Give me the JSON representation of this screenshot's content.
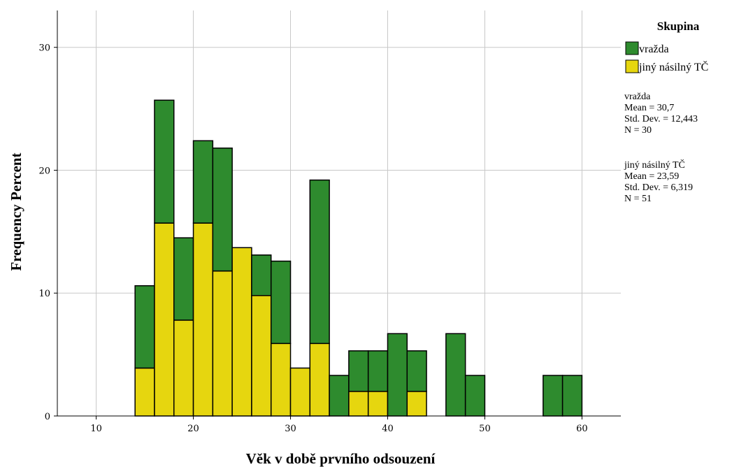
{
  "chart_data": {
    "type": "bar",
    "subtype": "stacked-histogram",
    "xlabel": "Věk v době prvního odsouzení",
    "ylabel": "Frequency Percent",
    "xlim": [
      6,
      64
    ],
    "ylim": [
      0,
      33
    ],
    "x_ticks": [
      10,
      20,
      30,
      40,
      50,
      60
    ],
    "y_ticks": [
      0,
      10,
      20,
      30
    ],
    "grid": true,
    "bin_width": 2,
    "legend": {
      "title": "Skupina",
      "position": "top-right",
      "items": [
        {
          "name": "vražda",
          "color": "#2e8b2e"
        },
        {
          "name": "jiný násilný TČ",
          "color": "#e6d60f"
        }
      ]
    },
    "series": [
      {
        "name": "jiný násilný TČ",
        "color": "#e6d60f",
        "bins": [
          {
            "x0": 14,
            "x1": 16,
            "value": 3.9
          },
          {
            "x0": 16,
            "x1": 18,
            "value": 15.7
          },
          {
            "x0": 18,
            "x1": 20,
            "value": 7.8
          },
          {
            "x0": 20,
            "x1": 22,
            "value": 15.7
          },
          {
            "x0": 22,
            "x1": 24,
            "value": 11.8
          },
          {
            "x0": 24,
            "x1": 26,
            "value": 13.7
          },
          {
            "x0": 26,
            "x1": 28,
            "value": 9.8
          },
          {
            "x0": 28,
            "x1": 30,
            "value": 5.9
          },
          {
            "x0": 30,
            "x1": 32,
            "value": 3.9
          },
          {
            "x0": 32,
            "x1": 34,
            "value": 5.9
          },
          {
            "x0": 34,
            "x1": 36,
            "value": 0
          },
          {
            "x0": 36,
            "x1": 38,
            "value": 2.0
          },
          {
            "x0": 38,
            "x1": 40,
            "value": 2.0
          },
          {
            "x0": 40,
            "x1": 42,
            "value": 0
          },
          {
            "x0": 42,
            "x1": 44,
            "value": 2.0
          },
          {
            "x0": 46,
            "x1": 48,
            "value": 0
          },
          {
            "x0": 48,
            "x1": 50,
            "value": 0
          },
          {
            "x0": 56,
            "x1": 58,
            "value": 0
          },
          {
            "x0": 58,
            "x1": 60,
            "value": 0
          }
        ]
      },
      {
        "name": "vražda",
        "color": "#2e8b2e",
        "bins": [
          {
            "x0": 14,
            "x1": 16,
            "value": 6.7
          },
          {
            "x0": 16,
            "x1": 18,
            "value": 10.0
          },
          {
            "x0": 18,
            "x1": 20,
            "value": 6.7
          },
          {
            "x0": 20,
            "x1": 22,
            "value": 6.7
          },
          {
            "x0": 22,
            "x1": 24,
            "value": 10.0
          },
          {
            "x0": 24,
            "x1": 26,
            "value": 0
          },
          {
            "x0": 26,
            "x1": 28,
            "value": 3.3
          },
          {
            "x0": 28,
            "x1": 30,
            "value": 6.7
          },
          {
            "x0": 30,
            "x1": 32,
            "value": 0
          },
          {
            "x0": 32,
            "x1": 34,
            "value": 13.3
          },
          {
            "x0": 34,
            "x1": 36,
            "value": 3.3
          },
          {
            "x0": 36,
            "x1": 38,
            "value": 3.3
          },
          {
            "x0": 38,
            "x1": 40,
            "value": 3.3
          },
          {
            "x0": 40,
            "x1": 42,
            "value": 6.7
          },
          {
            "x0": 42,
            "x1": 44,
            "value": 3.3
          },
          {
            "x0": 46,
            "x1": 48,
            "value": 6.7
          },
          {
            "x0": 48,
            "x1": 50,
            "value": 3.3
          },
          {
            "x0": 56,
            "x1": 58,
            "value": 3.3
          },
          {
            "x0": 58,
            "x1": 60,
            "value": 3.3
          }
        ]
      }
    ],
    "stats": [
      {
        "group": "vražda",
        "mean": "Mean = 30,7",
        "sd": "Std. Dev. = 12,443",
        "n": "N = 30"
      },
      {
        "group": "jiný násilný TČ",
        "mean": "Mean = 23,59",
        "sd": "Std. Dev. = 6,319",
        "n": "N = 51"
      }
    ]
  }
}
